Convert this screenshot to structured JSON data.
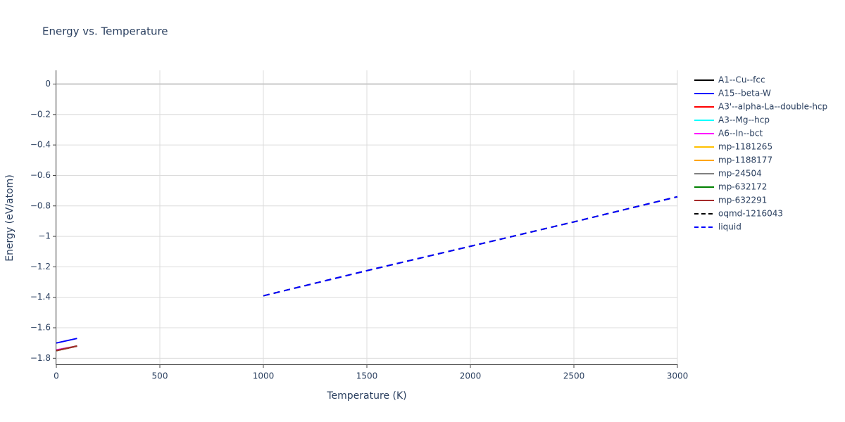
{
  "chart_data": {
    "type": "line",
    "title": "Energy vs. Temperature",
    "x_label": "Temperature (K)",
    "y_label": "Energy (eV/atom)",
    "xlim": [
      0,
      3000
    ],
    "xticks": [
      0,
      500,
      1000,
      1500,
      2000,
      2500,
      3000
    ],
    "ylim": [
      -1.84,
      0.09
    ],
    "yticks": [
      0,
      {
        "value": -0.2,
        "label": "−0.2"
      },
      {
        "value": -0.4,
        "label": "−0.4"
      },
      {
        "value": -0.6,
        "label": "−0.6"
      },
      {
        "value": -0.8,
        "label": "−0.8"
      },
      {
        "value": -1,
        "label": "−1"
      },
      {
        "value": -1.2,
        "label": "−1.2"
      },
      {
        "value": -1.4,
        "label": "−1.4"
      },
      {
        "value": -1.6,
        "label": "−1.6"
      },
      {
        "value": -1.8,
        "label": "−1.8"
      }
    ],
    "grid": true,
    "series": [
      {
        "name": "A1--Cu--fcc",
        "color": "#000000",
        "dash": "solid",
        "x": [
          0,
          100
        ],
        "values": [
          -1.75,
          -1.72
        ]
      },
      {
        "name": "A15--beta-W",
        "color": "#0000ff",
        "dash": "solid",
        "x": [
          0,
          100
        ],
        "values": [
          -1.7,
          -1.67
        ]
      },
      {
        "name": "A3'--alpha-La--double-hcp",
        "color": "#ff0000",
        "dash": "solid",
        "x": [
          0,
          100
        ],
        "values": [
          -1.75,
          -1.72
        ]
      },
      {
        "name": "A3--Mg--hcp",
        "color": "#00ffff",
        "dash": "solid",
        "x": [
          0,
          100
        ],
        "values": [
          -1.75,
          -1.72
        ]
      },
      {
        "name": "A6--In--bct",
        "color": "#ff00ff",
        "dash": "solid",
        "x": [
          0,
          100
        ],
        "values": [
          -1.745,
          -1.72
        ]
      },
      {
        "name": "mp-1181265",
        "color": "#ffc000",
        "dash": "solid",
        "x": [
          0,
          100
        ],
        "values": [
          -1.75,
          -1.72
        ]
      },
      {
        "name": "mp-1188177",
        "color": "#ffa500",
        "dash": "solid",
        "x": [
          0,
          100
        ],
        "values": [
          -1.75,
          -1.72
        ]
      },
      {
        "name": "mp-24504",
        "color": "#808080",
        "dash": "solid",
        "x": [
          0,
          100
        ],
        "values": [
          -1.75,
          -1.72
        ]
      },
      {
        "name": "mp-632172",
        "color": "#008000",
        "dash": "solid",
        "x": [
          0,
          100
        ],
        "values": [
          -1.75,
          -1.72
        ]
      },
      {
        "name": "mp-632291",
        "color": "#a52a2a",
        "dash": "solid",
        "x": [
          0,
          100
        ],
        "values": [
          -1.75,
          -1.72
        ]
      },
      {
        "name": "oqmd-1216043",
        "color": "#000000",
        "dash": "dash",
        "x": [
          1000,
          1500,
          2000,
          2500,
          3000
        ],
        "values": [
          -1.39,
          -1.225,
          -1.065,
          -0.905,
          -0.74
        ]
      },
      {
        "name": "liquid",
        "color": "#0000ff",
        "dash": "dash",
        "x": [
          1000,
          1500,
          2000,
          2500,
          3000
        ],
        "values": [
          -1.39,
          -1.225,
          -1.065,
          -0.905,
          -0.74
        ]
      }
    ]
  }
}
